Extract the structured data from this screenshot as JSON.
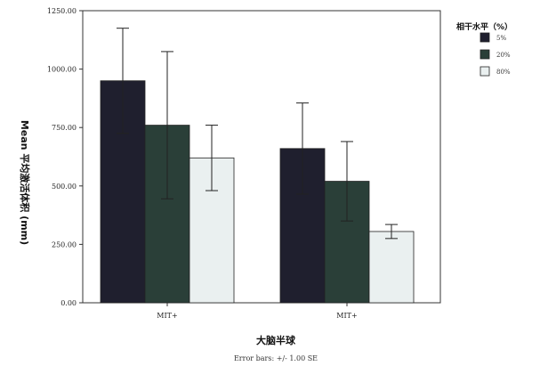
{
  "chart_data": {
    "type": "bar",
    "title": "",
    "xlabel": "大脑半球",
    "ylabel": "Mean 平均激活体积 (mm)",
    "caption": "Error bars: +/- 1.00 SE",
    "categories": [
      "MIT+",
      "MIT+"
    ],
    "ylim": [
      0,
      1250
    ],
    "yticks": [
      "0.00",
      "250.00",
      "500.00",
      "750.00",
      "1000.00",
      "1250.00"
    ],
    "legend": {
      "title": "相干水平（%）",
      "placement": "top-right"
    },
    "series": [
      {
        "name": "5%",
        "color": "#1f1f2e",
        "values": [
          950,
          660
        ],
        "errors": [
          225,
          195
        ]
      },
      {
        "name": "20%",
        "color": "#2a3f38",
        "values": [
          760,
          520
        ],
        "errors": [
          315,
          170
        ]
      },
      {
        "name": "80%",
        "color": "#eaf0f0",
        "values": [
          620,
          305
        ],
        "errors": [
          140,
          30
        ]
      }
    ],
    "grid": false
  }
}
